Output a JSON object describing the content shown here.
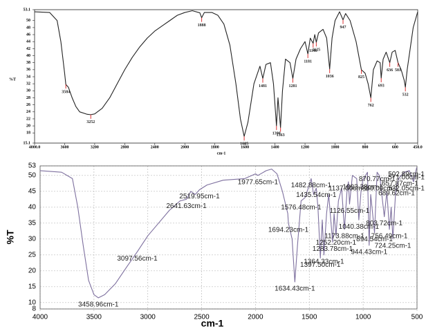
{
  "chart_data": [
    {
      "type": "line",
      "x": [
        4000,
        3800,
        3700,
        3650,
        3600,
        3584,
        3550,
        3500,
        3450,
        3400,
        3300,
        3252,
        3200,
        3100,
        3000,
        2900,
        2800,
        2700,
        2600,
        2500,
        2400,
        2300,
        2200,
        2100,
        2000,
        1950,
        1900,
        1888,
        1870,
        1820,
        1780,
        1740,
        1700,
        1660,
        1630,
        1605,
        1580,
        1540,
        1500,
        1481,
        1460,
        1430,
        1410,
        1390,
        1380,
        1363,
        1350,
        1330,
        1300,
        1281,
        1260,
        1230,
        1200,
        1181,
        1165,
        1146,
        1135,
        1125,
        1110,
        1080,
        1056,
        1036,
        1020,
        1000,
        970,
        947,
        930,
        900,
        860,
        825,
        800,
        780,
        762,
        745,
        720,
        700,
        693,
        680,
        660,
        636,
        620,
        600,
        581,
        560,
        540,
        532,
        520,
        500,
        480,
        450
      ],
      "series": [
        {
          "color": "#222222",
          "values": [
            52.5,
            52.3,
            50,
            44,
            35,
            31.8,
            31,
            28,
            25.5,
            24,
            23.3,
            23.2,
            23.4,
            25,
            28,
            32,
            36,
            39.5,
            42.5,
            45,
            47,
            48.5,
            50,
            51.5,
            52.3,
            52.8,
            52.2,
            50.8,
            52.3,
            52.3,
            51.5,
            49,
            43,
            32,
            22,
            17,
            21,
            32,
            37,
            33.5,
            37.5,
            38,
            32,
            20,
            28,
            19.5,
            30,
            39,
            38,
            33.5,
            39,
            42,
            44,
            40.5,
            45,
            43.5,
            46,
            43.8,
            46.5,
            47.5,
            45,
            36.2,
            45,
            50,
            52.5,
            50.2,
            52,
            50,
            44,
            36,
            35,
            32,
            28,
            36,
            38.5,
            38,
            33.6,
            39,
            41,
            38,
            41,
            41.5,
            38,
            36,
            33,
            31,
            36,
            42,
            48,
            52.5
          ]
        }
      ],
      "xlim": [
        4000,
        450
      ],
      "ylim": [
        15.1,
        53.1
      ],
      "xticks": [
        {
          "value": 4000,
          "label": "4000.0"
        },
        3600,
        3200,
        2800,
        2400,
        2000,
        1800,
        1600,
        1400,
        1200,
        1000,
        800,
        600,
        {
          "value": 450,
          "label": "450.0"
        }
      ],
      "yticks": [
        15.1,
        18,
        20,
        22,
        24,
        26,
        28,
        30,
        32,
        34,
        36,
        38,
        40,
        42,
        44,
        46,
        48,
        50,
        53.1
      ],
      "xlabel": "cm-1",
      "ylabel": "%T",
      "grid": false,
      "annotation_color": "#d83030",
      "annotations": [
        {
          "text": "3584",
          "x": 3584,
          "y": 31.8
        },
        {
          "text": "3252",
          "x": 3252,
          "y": 23.2
        },
        {
          "text": "1888",
          "x": 1888,
          "y": 50.8
        },
        {
          "text": "1605",
          "x": 1605,
          "y": 17
        },
        {
          "text": "1481",
          "x": 1481,
          "y": 33.5
        },
        {
          "text": "1390",
          "x": 1390,
          "y": 20
        },
        {
          "text": "1363",
          "x": 1363,
          "y": 19.5
        },
        {
          "text": "1281",
          "x": 1281,
          "y": 33.5
        },
        {
          "text": "1181",
          "x": 1181,
          "y": 40.5
        },
        {
          "text": "1146",
          "x": 1146,
          "y": 43.5
        },
        {
          "text": "1125",
          "x": 1125,
          "y": 43.8
        },
        {
          "text": "1036",
          "x": 1036,
          "y": 36.2
        },
        {
          "text": "947",
          "x": 947,
          "y": 50.2
        },
        {
          "text": "825",
          "x": 825,
          "y": 36
        },
        {
          "text": "762",
          "x": 762,
          "y": 28
        },
        {
          "text": "693",
          "x": 693,
          "y": 33.6
        },
        {
          "text": "636",
          "x": 636,
          "y": 38
        },
        {
          "text": "581",
          "x": 581,
          "y": 38
        },
        {
          "text": "532",
          "x": 532,
          "y": 31
        }
      ]
    },
    {
      "type": "line",
      "x": [
        4000,
        3800,
        3700,
        3650,
        3600,
        3550,
        3500,
        3458.96,
        3400,
        3300,
        3200,
        3097.56,
        3000,
        2900,
        2800,
        2700,
        2641.63,
        2600,
        2560,
        2519.95,
        2450,
        2300,
        2100,
        2000,
        1977.65,
        1900,
        1850,
        1800,
        1750,
        1700,
        1694.23,
        1660,
        1634.43,
        1610,
        1576.48,
        1540,
        1500,
        1482.88,
        1460,
        1435.54,
        1420,
        1397.5,
        1380,
        1364.33,
        1340,
        1320,
        1283.78,
        1270,
        1252.2,
        1230,
        1200,
        1173.88,
        1150,
        1137,
        1126.55,
        1100,
        1060,
        1040.38,
        1020,
        1003.38,
        960,
        944.43,
        930,
        894.54,
        870.77,
        850,
        840,
        803.72,
        780,
        756.49,
        740,
        724.25,
        700,
        689.62,
        670,
        657.87,
        620,
        571,
        532.05,
        502.89
      ],
      "series": [
        {
          "color": "#7d6f9e",
          "values": [
            51.5,
            51,
            49,
            40,
            28,
            17,
            12.5,
            11.5,
            12.5,
            16,
            21,
            26,
            31,
            35,
            39,
            42,
            42.5,
            45,
            44,
            45.5,
            47,
            48.5,
            49,
            50.5,
            50,
            51.5,
            52,
            50.5,
            45,
            38,
            35,
            30,
            16.5,
            28,
            42,
            43,
            47,
            49,
            44,
            46,
            40,
            24,
            36,
            25,
            38,
            44,
            29,
            38,
            31,
            42,
            46,
            33,
            45,
            48,
            41,
            50,
            49,
            36,
            45,
            48.5,
            51,
            28,
            44,
            32,
            51,
            50,
            48,
            37,
            45,
            33,
            40,
            30,
            44,
            46.5,
            49,
            49.5,
            51,
            51.5,
            48,
            52.5
          ]
        }
      ],
      "xlim": [
        4000,
        500
      ],
      "ylim": [
        8,
        53
      ],
      "xticks": [
        4000,
        3500,
        3000,
        2500,
        2000,
        1500,
        1000,
        500
      ],
      "yticks": [
        8,
        10,
        15,
        20,
        25,
        30,
        35,
        40,
        45,
        50,
        53
      ],
      "xlabel": "cm-1",
      "ylabel": "%T",
      "grid": true,
      "annotations": [
        {
          "text": "3458.96cm-1",
          "x": 3458.96,
          "y": 11.5
        },
        {
          "text": "3097.56cm-1",
          "x": 3097.56,
          "y": 26
        },
        {
          "text": "2641.63cm-1",
          "x": 2641.63,
          "y": 42.5
        },
        {
          "text": "2519.95cm-1",
          "x": 2519.95,
          "y": 45.5
        },
        {
          "text": "1977.65cm-1",
          "x": 1977.65,
          "y": 50
        },
        {
          "text": "1694.23cm-1",
          "x": 1694.23,
          "y": 35
        },
        {
          "text": "1634.43cm-1",
          "x": 1634.43,
          "y": 16.5
        },
        {
          "text": "1576.48cm-1",
          "x": 1576.48,
          "y": 42
        },
        {
          "text": "1482.88cm-1",
          "x": 1482.88,
          "y": 49
        },
        {
          "text": "1435.54cm-1",
          "x": 1435.54,
          "y": 46
        },
        {
          "text": "1397.50cm-1",
          "x": 1397.5,
          "y": 24
        },
        {
          "text": "1364.33cm-1",
          "x": 1364.33,
          "y": 25
        },
        {
          "text": "1283.78cm-1",
          "x": 1283.78,
          "y": 29
        },
        {
          "text": "1252.20cm-1",
          "x": 1252.2,
          "y": 31
        },
        {
          "text": "1173.88cm-1",
          "x": 1173.88,
          "y": 33
        },
        {
          "text": "1137.00cm-1",
          "x": 1137,
          "y": 48
        },
        {
          "text": "1126.55cm-1",
          "x": 1126.55,
          "y": 41
        },
        {
          "text": "1040.38cm-1",
          "x": 1040.38,
          "y": 36
        },
        {
          "text": "1003.38cm-1",
          "x": 1003.38,
          "y": 48.5
        },
        {
          "text": "944.43cm-1",
          "x": 944.43,
          "y": 28
        },
        {
          "text": "894.54cm-1",
          "x": 894.54,
          "y": 32
        },
        {
          "text": "870.77cm-1",
          "x": 870.77,
          "y": 51
        },
        {
          "text": "840.00cm-1",
          "x": 840,
          "y": 48
        },
        {
          "text": "803.72cm-1",
          "x": 803.72,
          "y": 37
        },
        {
          "text": "756.49cm-1",
          "x": 756.49,
          "y": 33
        },
        {
          "text": "724.25cm-1",
          "x": 724.25,
          "y": 30
        },
        {
          "text": "689.62cm-1",
          "x": 689.62,
          "y": 46.5
        },
        {
          "text": "657.87cm-1",
          "x": 657.87,
          "y": 49.5
        },
        {
          "text": "571.00cm-1",
          "x": 571,
          "y": 51.5
        },
        {
          "text": "532.05cm-1",
          "x": 532.05,
          "y": 48
        },
        {
          "text": "502.89cm-1",
          "x": 502.89,
          "y": 52.5
        }
      ]
    }
  ]
}
